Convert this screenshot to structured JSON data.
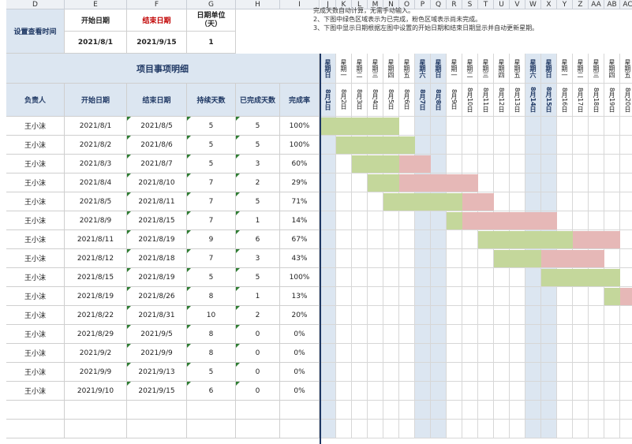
{
  "columns": {
    "left": [
      "D",
      "E",
      "F",
      "G",
      "H",
      "I"
    ],
    "gantt": [
      "J",
      "K",
      "L",
      "M",
      "N",
      "O",
      "P",
      "Q",
      "R",
      "S",
      "T",
      "U",
      "V",
      "W",
      "X",
      "Y",
      "Z",
      "AA",
      "AB",
      "AC"
    ]
  },
  "notes": [
    "完成天数自动计算，无需手动输入。",
    "2、下图中绿色区域表示为已完成，粉色区域表示尚未完成。",
    "3、下图中显示日期根据左图中设置的开始日期和结束日期显示并自动更新星期。"
  ],
  "settings": {
    "label": "设置查看时间",
    "start_label": "开始日期",
    "end_label": "结束日期",
    "unit_label": "日期单位（天）",
    "start_value": "2021/8/1",
    "end_value": "2021/9/15",
    "unit_value": "1"
  },
  "table": {
    "title": "项目事项明细",
    "headers": [
      "负责人",
      "开始日期",
      "结束日期",
      "持续天数",
      "已完成天数",
      "完成率"
    ],
    "rows": [
      {
        "owner": "王小沫",
        "start": "2021/8/1",
        "end": "2021/8/5",
        "days": "5",
        "done": "5",
        "rate": "100%"
      },
      {
        "owner": "王小沫",
        "start": "2021/8/2",
        "end": "2021/8/6",
        "days": "5",
        "done": "5",
        "rate": "100%"
      },
      {
        "owner": "王小沫",
        "start": "2021/8/3",
        "end": "2021/8/7",
        "days": "5",
        "done": "3",
        "rate": "60%"
      },
      {
        "owner": "王小沫",
        "start": "2021/8/4",
        "end": "2021/8/10",
        "days": "7",
        "done": "2",
        "rate": "29%"
      },
      {
        "owner": "王小沫",
        "start": "2021/8/5",
        "end": "2021/8/11",
        "days": "7",
        "done": "5",
        "rate": "71%"
      },
      {
        "owner": "王小沫",
        "start": "2021/8/9",
        "end": "2021/8/15",
        "days": "7",
        "done": "1",
        "rate": "14%"
      },
      {
        "owner": "王小沫",
        "start": "2021/8/11",
        "end": "2021/8/19",
        "days": "9",
        "done": "6",
        "rate": "67%"
      },
      {
        "owner": "王小沫",
        "start": "2021/8/12",
        "end": "2021/8/18",
        "days": "7",
        "done": "3",
        "rate": "43%"
      },
      {
        "owner": "王小沫",
        "start": "2021/8/15",
        "end": "2021/8/19",
        "days": "5",
        "done": "5",
        "rate": "100%"
      },
      {
        "owner": "王小沫",
        "start": "2021/8/19",
        "end": "2021/8/26",
        "days": "8",
        "done": "1",
        "rate": "13%"
      },
      {
        "owner": "王小沫",
        "start": "2021/8/22",
        "end": "2021/8/31",
        "days": "10",
        "done": "2",
        "rate": "20%"
      },
      {
        "owner": "王小沫",
        "start": "2021/8/29",
        "end": "2021/9/5",
        "days": "8",
        "done": "0",
        "rate": "0%"
      },
      {
        "owner": "王小沫",
        "start": "2021/9/2",
        "end": "2021/9/9",
        "days": "8",
        "done": "0",
        "rate": "0%"
      },
      {
        "owner": "王小沫",
        "start": "2021/9/9",
        "end": "2021/9/13",
        "days": "5",
        "done": "0",
        "rate": "0%"
      },
      {
        "owner": "王小沫",
        "start": "2021/9/10",
        "end": "2021/9/15",
        "days": "6",
        "done": "0",
        "rate": "0%"
      }
    ],
    "empty_rows": 2
  },
  "gantt": {
    "weekdays": [
      "星期日",
      "星期一",
      "星期二",
      "星期三",
      "星期四",
      "星期五",
      "星期六",
      "星期日",
      "星期一",
      "星期二",
      "星期三",
      "星期四",
      "星期五",
      "星期六",
      "星期日",
      "星期一",
      "星期二",
      "星期三",
      "星期四",
      "星期五"
    ],
    "dates": [
      "8月1日",
      "8月2日",
      "8月3日",
      "8月4日",
      "8月5日",
      "8月6日",
      "8月7日",
      "8月8日",
      "8月9日",
      "8月10日",
      "8月11日",
      "8月12日",
      "8月13日",
      "8月14日",
      "8月15日",
      "8月16日",
      "8月17日",
      "8月18日",
      "8月19日",
      "8月20日"
    ],
    "weekend_flags": [
      1,
      0,
      0,
      0,
      0,
      0,
      1,
      1,
      0,
      0,
      0,
      0,
      0,
      1,
      1,
      0,
      0,
      0,
      0,
      0
    ],
    "colors": {
      "done": "#c4d79b",
      "todo": "#e6b8b7",
      "weekend": "#dce6f1",
      "header": "#dce6f1"
    }
  }
}
